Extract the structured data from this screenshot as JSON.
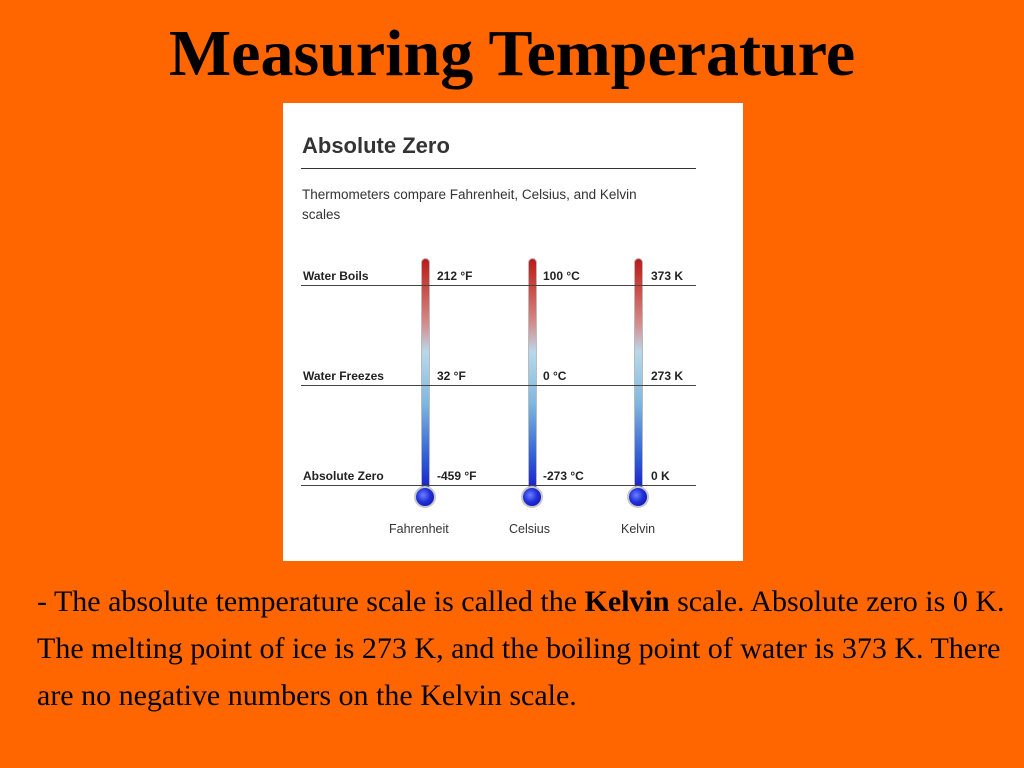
{
  "slide": {
    "title": "Measuring Temperature"
  },
  "figure": {
    "heading": "Absolute Zero",
    "subtitle": "Thermometers compare Fahrenheit, Celsius, and Kelvin scales",
    "rows": [
      {
        "label": "Water Boils",
        "fahrenheit": "212 °F",
        "celsius": "100 °C",
        "kelvin": "373 K"
      },
      {
        "label": "Water Freezes",
        "fahrenheit": "32 °F",
        "celsius": "0 °C",
        "kelvin": "273 K"
      },
      {
        "label": "Absolute Zero",
        "fahrenheit": "-459 °F",
        "celsius": "-273 °C",
        "kelvin": "0 K"
      }
    ],
    "scales": [
      "Fahrenheit",
      "Celsius",
      "Kelvin"
    ],
    "colors": {
      "hot": "#b81b1b",
      "cold": "#1a1acc",
      "background": "#ff6600"
    }
  },
  "caption": {
    "part1": "- The absolute temperature scale is called the ",
    "bold": "Kelvin",
    "part2": " scale. Absolute zero is 0 K. The melting point of ice is 273 K, and the boiling point of water is 373 K.  There are no negative numbers on the Kelvin scale."
  }
}
